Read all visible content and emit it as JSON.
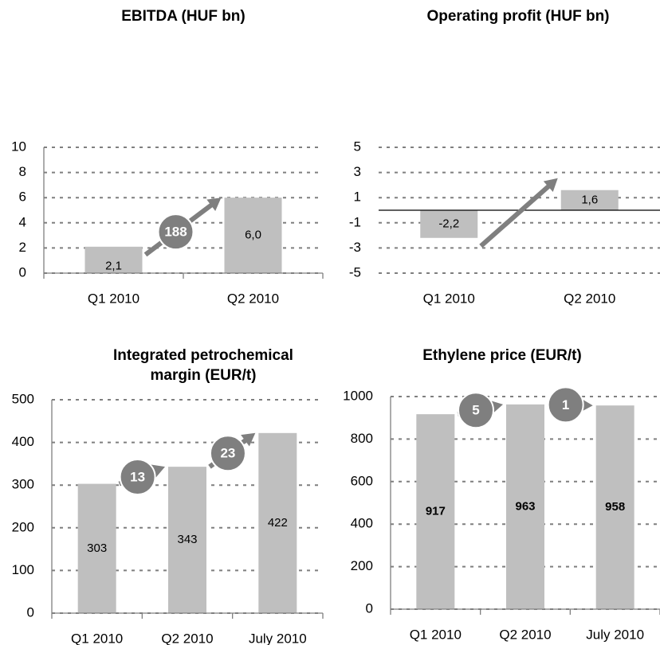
{
  "chart_data": [
    {
      "type": "bar",
      "title": "EBITDA (HUF bn)",
      "categories": [
        "Q1 2010",
        "Q2 2010"
      ],
      "values": [
        2.1,
        6.0
      ],
      "value_labels": [
        "2,1",
        "6,0"
      ],
      "color": "#bfbfbf",
      "ylim": [
        0,
        10
      ],
      "yticks": [
        0,
        2,
        4,
        6,
        8,
        10
      ],
      "grid": true,
      "annotations": [
        "188"
      ]
    },
    {
      "type": "bar",
      "title": "Operating profit (HUF bn)",
      "categories": [
        "Q1 2010",
        "Q2 2010"
      ],
      "values": [
        -2.2,
        1.6
      ],
      "value_labels": [
        "-2,2",
        "1,6"
      ],
      "color": "#bfbfbf",
      "ylim": [
        -5,
        5
      ],
      "yticks": [
        -5,
        -3,
        -1,
        1,
        3,
        5
      ],
      "grid": true,
      "annotations": []
    },
    {
      "type": "bar",
      "title": "Integrated petrochemical margin (EUR/t)",
      "categories": [
        "Q1 2010",
        "Q2 2010",
        "July 2010"
      ],
      "values": [
        303,
        343,
        422
      ],
      "color": "#bfbfbf",
      "ylim": [
        0,
        500
      ],
      "yticks": [
        0,
        100,
        200,
        300,
        400,
        500
      ],
      "grid": true,
      "annotations": [
        "13",
        "23"
      ]
    },
    {
      "type": "bar",
      "title": "Ethylene price (EUR/t)",
      "categories": [
        "Q1 2010",
        "Q2 2010",
        "July 2010"
      ],
      "values": [
        917,
        963,
        958
      ],
      "color": "#bfbfbf",
      "ylim": [
        0,
        1000
      ],
      "yticks": [
        0,
        200,
        400,
        600,
        800,
        1000
      ],
      "grid": true,
      "annotations": [
        "5",
        "1"
      ]
    }
  ]
}
